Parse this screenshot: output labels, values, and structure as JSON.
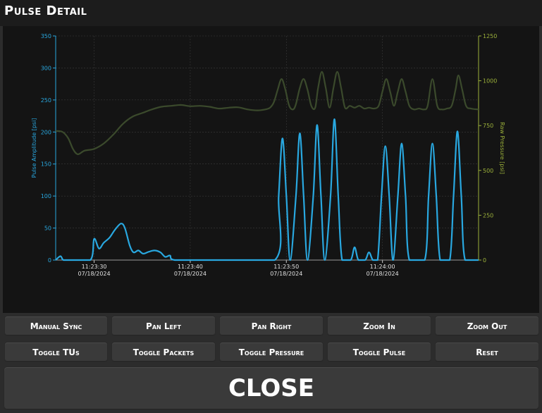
{
  "window": {
    "title": "Pulse Detail"
  },
  "buttons": {
    "manual_sync": "Manual Sync",
    "pan_left": "Pan Left",
    "pan_right": "Pan Right",
    "zoom_in": "Zoom In",
    "zoom_out": "Zoom Out",
    "toggle_tus": "Toggle TUs",
    "toggle_packets": "Toggle Packets",
    "toggle_pressure": "Toggle Pressure",
    "toggle_pulse": "Toggle Pulse",
    "reset": "Reset",
    "close": "CLOSE"
  },
  "colors": {
    "pulse": "#29a8e0",
    "pressure": "#3b4a2c",
    "left_axis": "#29a8e0",
    "right_axis": "#9bb03a",
    "grid": "#3a3a3a",
    "background": "#141414"
  },
  "chart_data": {
    "type": "line",
    "ylabel": "Pulse Amplitude [psi]",
    "y2label": "Raw Pressure [psi]",
    "ylim": [
      0,
      350
    ],
    "y2lim": [
      0,
      1250
    ],
    "yticks": [
      "0",
      "50",
      "100",
      "150",
      "200",
      "250",
      "300",
      "350"
    ],
    "y2ticks": [
      "0",
      "250",
      "500",
      "750",
      "1000",
      "1250"
    ],
    "xticks": [
      {
        "time": "11:23:30",
        "date": "07/18/2024"
      },
      {
        "time": "11:23:40",
        "date": "07/18/2024"
      },
      {
        "time": "11:23:50",
        "date": "07/18/2024"
      },
      {
        "time": "11:24:00",
        "date": "07/18/2024"
      }
    ],
    "grid": true,
    "series": [
      {
        "name": "Pulse Amplitude",
        "axis": "left",
        "points": [
          [
            -4.0,
            0
          ],
          [
            -3.5,
            6
          ],
          [
            -3.2,
            0
          ],
          [
            -2.5,
            0
          ],
          [
            -0.4,
            0
          ],
          [
            0.0,
            33
          ],
          [
            0.5,
            18
          ],
          [
            1.0,
            27
          ],
          [
            1.6,
            35
          ],
          [
            2.2,
            48
          ],
          [
            2.8,
            57
          ],
          [
            3.2,
            50
          ],
          [
            3.7,
            23
          ],
          [
            4.1,
            12
          ],
          [
            4.6,
            15
          ],
          [
            5.1,
            10
          ],
          [
            5.7,
            13
          ],
          [
            6.3,
            15
          ],
          [
            6.9,
            12
          ],
          [
            7.4,
            5
          ],
          [
            7.9,
            7
          ],
          [
            8.4,
            0
          ],
          [
            12.0,
            0
          ],
          [
            18.8,
            0
          ],
          [
            19.2,
            100
          ],
          [
            19.6,
            190
          ],
          [
            20.0,
            100
          ],
          [
            20.4,
            0
          ],
          [
            21.0,
            100
          ],
          [
            21.4,
            198
          ],
          [
            21.8,
            100
          ],
          [
            22.2,
            0
          ],
          [
            22.8,
            100
          ],
          [
            23.2,
            211
          ],
          [
            23.6,
            100
          ],
          [
            24.0,
            0
          ],
          [
            24.6,
            100
          ],
          [
            25.0,
            220
          ],
          [
            25.4,
            100
          ],
          [
            25.8,
            0
          ],
          [
            26.7,
            0
          ],
          [
            27.1,
            20
          ],
          [
            27.5,
            0
          ],
          [
            28.2,
            0
          ],
          [
            28.6,
            12
          ],
          [
            29.0,
            0
          ],
          [
            29.5,
            0
          ],
          [
            29.9,
            100
          ],
          [
            30.3,
            178
          ],
          [
            30.7,
            100
          ],
          [
            31.1,
            0
          ],
          [
            31.6,
            100
          ],
          [
            32.0,
            182
          ],
          [
            32.4,
            100
          ],
          [
            32.8,
            0
          ],
          [
            34.4,
            0
          ],
          [
            34.8,
            100
          ],
          [
            35.2,
            182
          ],
          [
            35.6,
            100
          ],
          [
            36.0,
            0
          ],
          [
            37.0,
            0
          ],
          [
            37.4,
            100
          ],
          [
            37.8,
            201
          ],
          [
            38.2,
            100
          ],
          [
            38.6,
            0
          ],
          [
            40.0,
            0
          ]
        ]
      },
      {
        "name": "Raw Pressure",
        "axis": "right",
        "points": [
          [
            -4.0,
            720
          ],
          [
            -3.3,
            715
          ],
          [
            -2.7,
            680
          ],
          [
            -2.2,
            620
          ],
          [
            -1.7,
            590
          ],
          [
            -1.0,
            610
          ],
          [
            0.0,
            620
          ],
          [
            1.0,
            650
          ],
          [
            2.0,
            700
          ],
          [
            3.0,
            760
          ],
          [
            4.0,
            800
          ],
          [
            5.0,
            820
          ],
          [
            6.0,
            840
          ],
          [
            7.0,
            855
          ],
          [
            8.0,
            860
          ],
          [
            9.0,
            865
          ],
          [
            10.0,
            858
          ],
          [
            11.0,
            860
          ],
          [
            12.0,
            855
          ],
          [
            13.0,
            845
          ],
          [
            14.0,
            850
          ],
          [
            15.0,
            852
          ],
          [
            16.0,
            840
          ],
          [
            17.0,
            835
          ],
          [
            17.8,
            840
          ],
          [
            18.3,
            850
          ],
          [
            18.7,
            880
          ],
          [
            19.1,
            950
          ],
          [
            19.5,
            1010
          ],
          [
            19.9,
            950
          ],
          [
            20.3,
            860
          ],
          [
            20.7,
            840
          ],
          [
            21.0,
            870
          ],
          [
            21.4,
            960
          ],
          [
            21.8,
            1010
          ],
          [
            22.2,
            950
          ],
          [
            22.6,
            860
          ],
          [
            23.0,
            850
          ],
          [
            23.3,
            960
          ],
          [
            23.7,
            1050
          ],
          [
            24.1,
            960
          ],
          [
            24.5,
            850
          ],
          [
            24.9,
            960
          ],
          [
            25.3,
            1050
          ],
          [
            25.7,
            960
          ],
          [
            26.1,
            850
          ],
          [
            26.6,
            860
          ],
          [
            27.1,
            850
          ],
          [
            27.6,
            860
          ],
          [
            28.1,
            845
          ],
          [
            28.6,
            850
          ],
          [
            29.1,
            845
          ],
          [
            29.6,
            860
          ],
          [
            30.0,
            940
          ],
          [
            30.4,
            1010
          ],
          [
            30.8,
            940
          ],
          [
            31.2,
            860
          ],
          [
            31.6,
            940
          ],
          [
            32.0,
            1010
          ],
          [
            32.4,
            940
          ],
          [
            32.8,
            860
          ],
          [
            33.3,
            840
          ],
          [
            33.8,
            845
          ],
          [
            34.3,
            840
          ],
          [
            34.7,
            860
          ],
          [
            35.2,
            1010
          ],
          [
            35.7,
            860
          ],
          [
            36.2,
            840
          ],
          [
            36.7,
            845
          ],
          [
            37.2,
            860
          ],
          [
            37.6,
            950
          ],
          [
            37.9,
            1030
          ],
          [
            38.3,
            950
          ],
          [
            38.7,
            860
          ],
          [
            39.2,
            845
          ],
          [
            40.0,
            840
          ]
        ]
      }
    ]
  }
}
